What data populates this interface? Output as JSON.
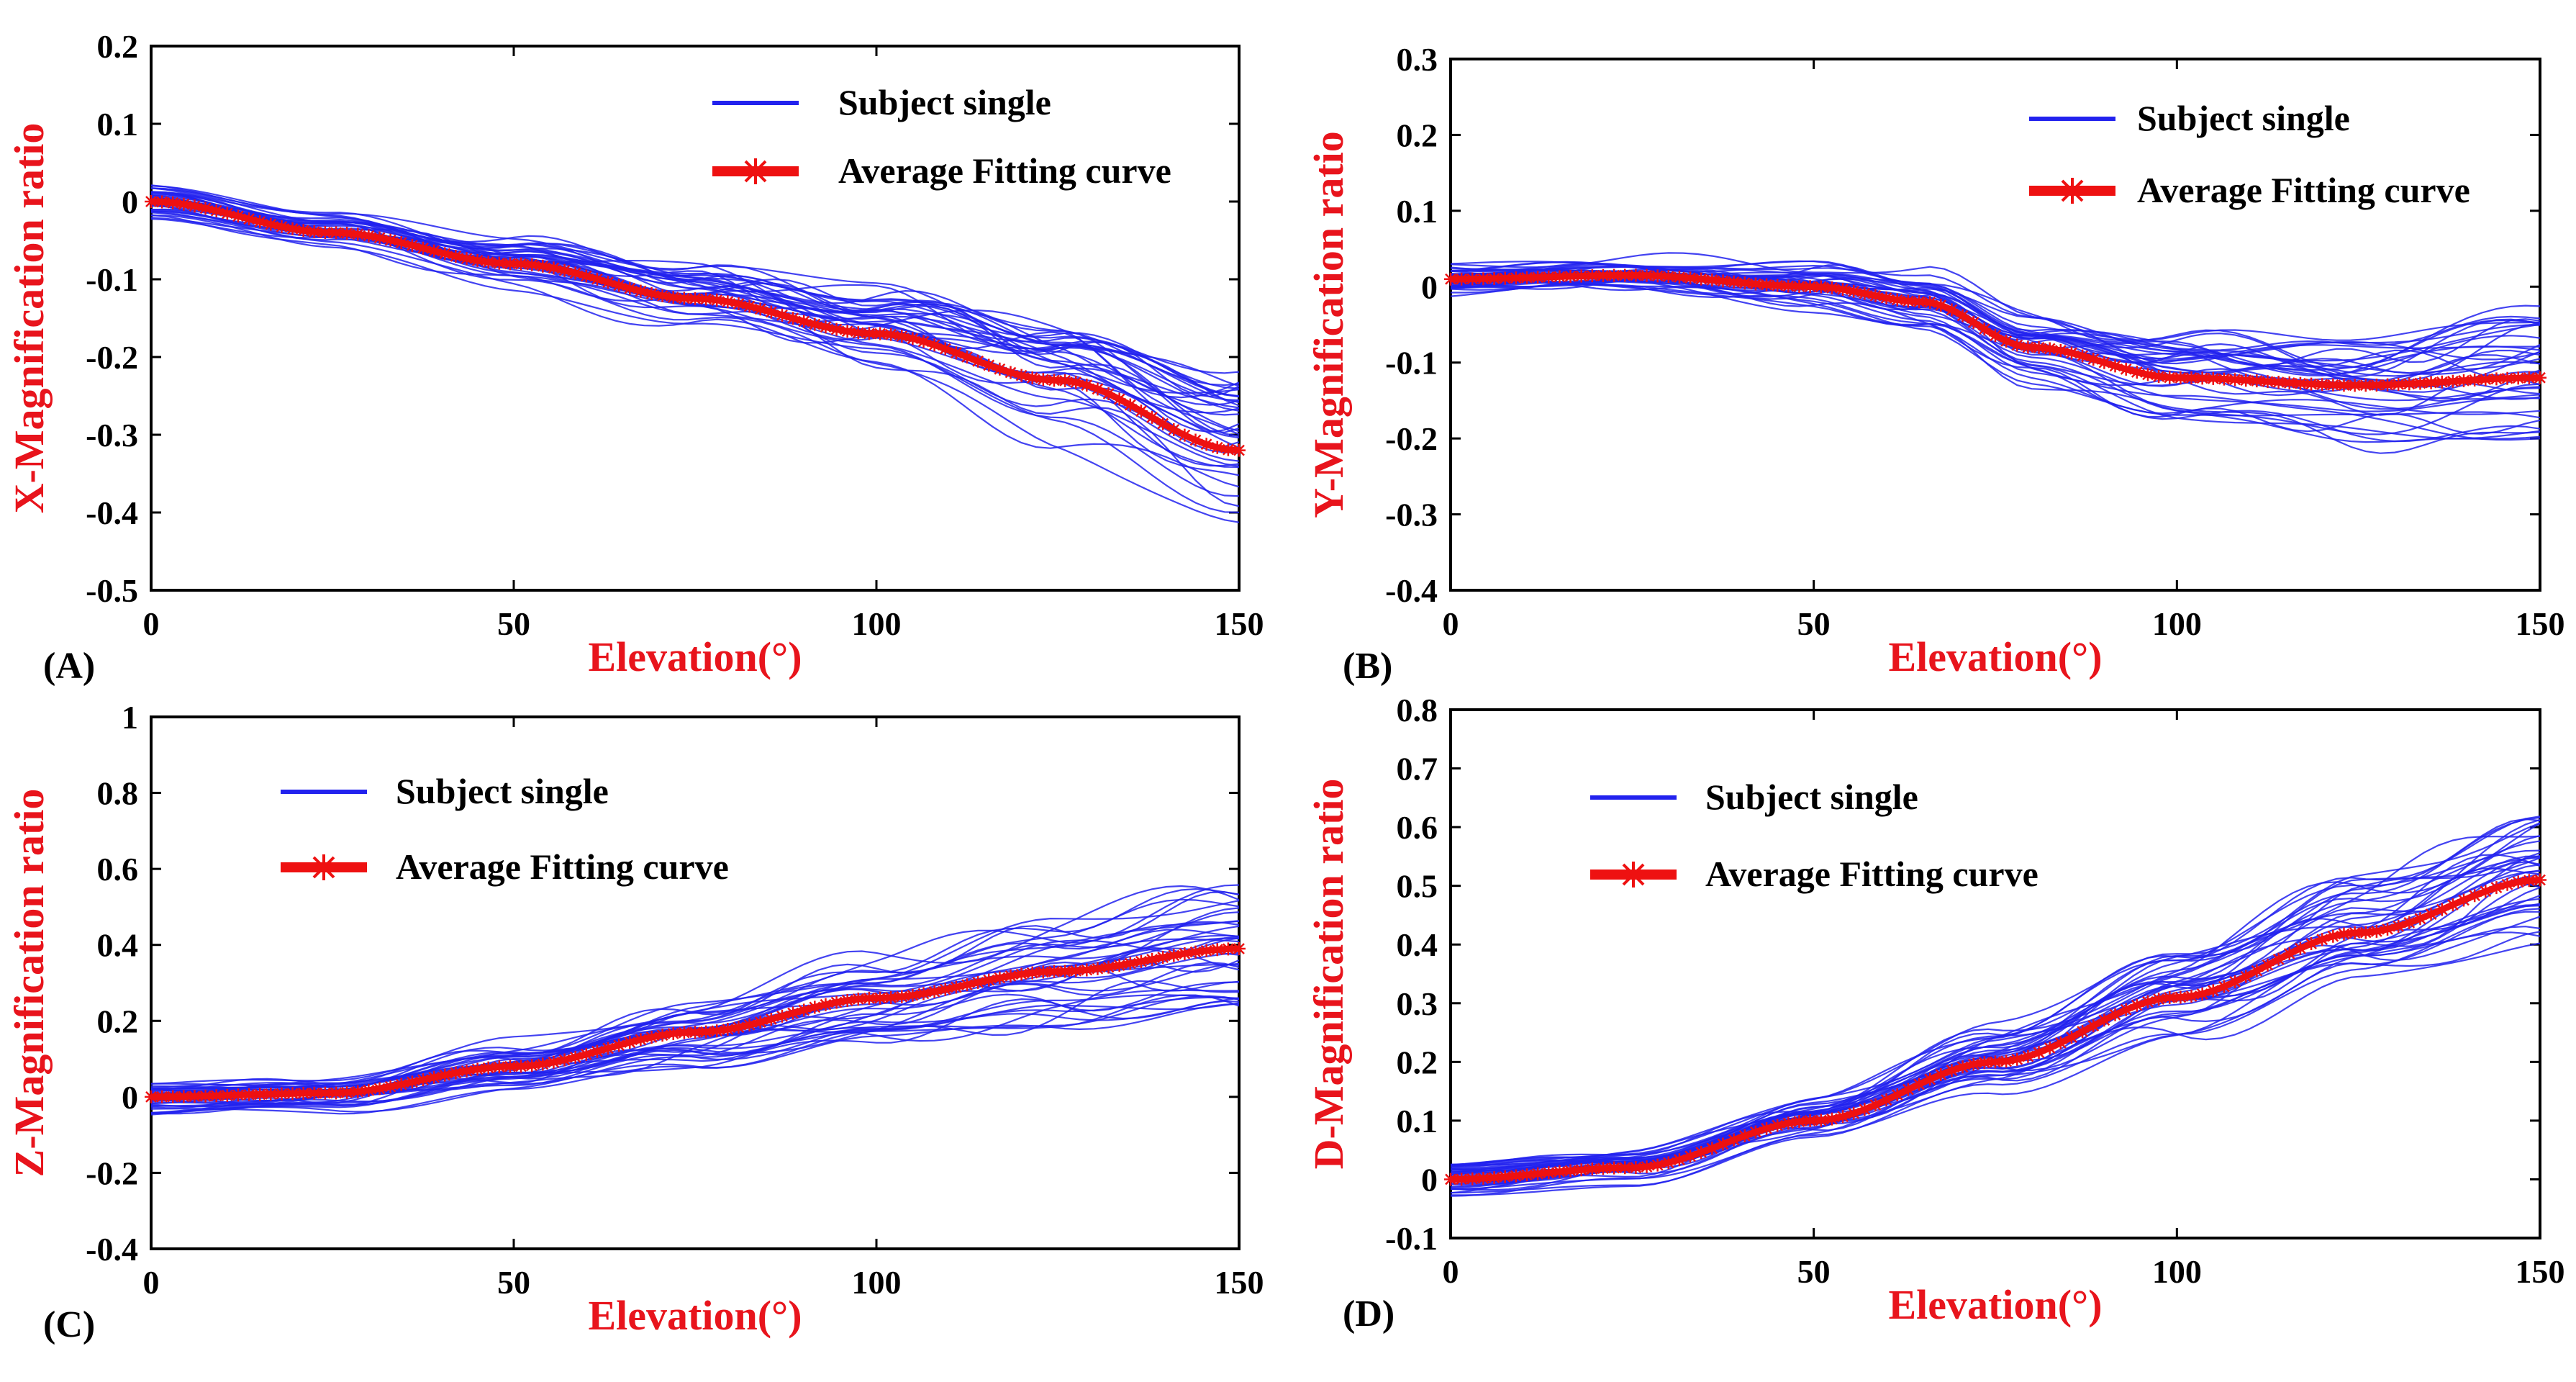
{
  "colors": {
    "subject": "#2222ee",
    "average": "#ee1111",
    "label": "#e8141c"
  },
  "chart_data": [
    {
      "type": "line",
      "panel_label": "(A)",
      "xlabel": "Elevation(°)",
      "ylabel": "X-Magnification ratio",
      "xlim": [
        0,
        150
      ],
      "ylim": [
        -0.5,
        0.2
      ],
      "xticks": [
        "0",
        "50",
        "100",
        "150"
      ],
      "yticks": [
        "0.2",
        "0.1",
        "0",
        "-0.1",
        "-0.2",
        "-0.3",
        "-0.4",
        "-0.5"
      ],
      "legend": {
        "position": "top-right",
        "items": [
          "Subject single",
          "Average Fitting curve"
        ]
      },
      "series": [
        {
          "name": "Average Fitting curve",
          "x": [
            0,
            25,
            50,
            75,
            100,
            125,
            150
          ],
          "values": [
            0.0,
            -0.04,
            -0.08,
            -0.125,
            -0.17,
            -0.23,
            -0.32
          ]
        }
      ]
    },
    {
      "type": "line",
      "panel_label": "(B)",
      "xlabel": "Elevation(°)",
      "ylabel": "Y-Magnification ratio",
      "xlim": [
        0,
        150
      ],
      "ylim": [
        -0.4,
        0.3
      ],
      "xticks": [
        "0",
        "50",
        "100",
        "150"
      ],
      "yticks": [
        "0.3",
        "0.2",
        "0.1",
        "0",
        "-0.1",
        "-0.2",
        "-0.3",
        "-0.4"
      ],
      "legend": {
        "position": "top-right",
        "items": [
          "Subject single",
          "Average Fitting curve"
        ]
      },
      "series": [
        {
          "name": "Average Fitting curve",
          "x": [
            0,
            25,
            50,
            65,
            80,
            100,
            125,
            150
          ],
          "values": [
            0.01,
            0.015,
            0.0,
            -0.02,
            -0.08,
            -0.12,
            -0.13,
            -0.12
          ]
        }
      ]
    },
    {
      "type": "line",
      "panel_label": "(C)",
      "xlabel": "Elevation(°)",
      "ylabel": "Z-Magnification ratio",
      "xlim": [
        0,
        150
      ],
      "ylim": [
        -0.4,
        1
      ],
      "xticks": [
        "0",
        "50",
        "100",
        "150"
      ],
      "yticks": [
        "1",
        "0.8",
        "0.6",
        "0.4",
        "0.2",
        "0",
        "-0.2",
        "-0.4"
      ],
      "legend": {
        "position": "top-left",
        "items": [
          "Subject single",
          "Average Fitting curve"
        ]
      },
      "series": [
        {
          "name": "Average Fitting curve",
          "x": [
            0,
            25,
            50,
            75,
            100,
            125,
            150
          ],
          "values": [
            0.0,
            0.01,
            0.08,
            0.17,
            0.26,
            0.33,
            0.39
          ]
        }
      ]
    },
    {
      "type": "line",
      "panel_label": "(D)",
      "xlabel": "Elevation(°)",
      "ylabel": "D-Magnification ratio",
      "xlim": [
        0,
        150
      ],
      "ylim": [
        -0.1,
        0.8
      ],
      "xticks": [
        "0",
        "50",
        "100",
        "150"
      ],
      "yticks": [
        "0.8",
        "0.7",
        "0.6",
        "0.5",
        "0.4",
        "0.3",
        "0.2",
        "0.1",
        "0",
        "-0.1"
      ],
      "legend": {
        "position": "top-left",
        "items": [
          "Subject single",
          "Average Fitting curve"
        ]
      },
      "series": [
        {
          "name": "Average Fitting curve",
          "x": [
            0,
            25,
            50,
            75,
            100,
            125,
            150
          ],
          "values": [
            0.0,
            0.02,
            0.1,
            0.2,
            0.31,
            0.42,
            0.51
          ]
        }
      ]
    }
  ]
}
